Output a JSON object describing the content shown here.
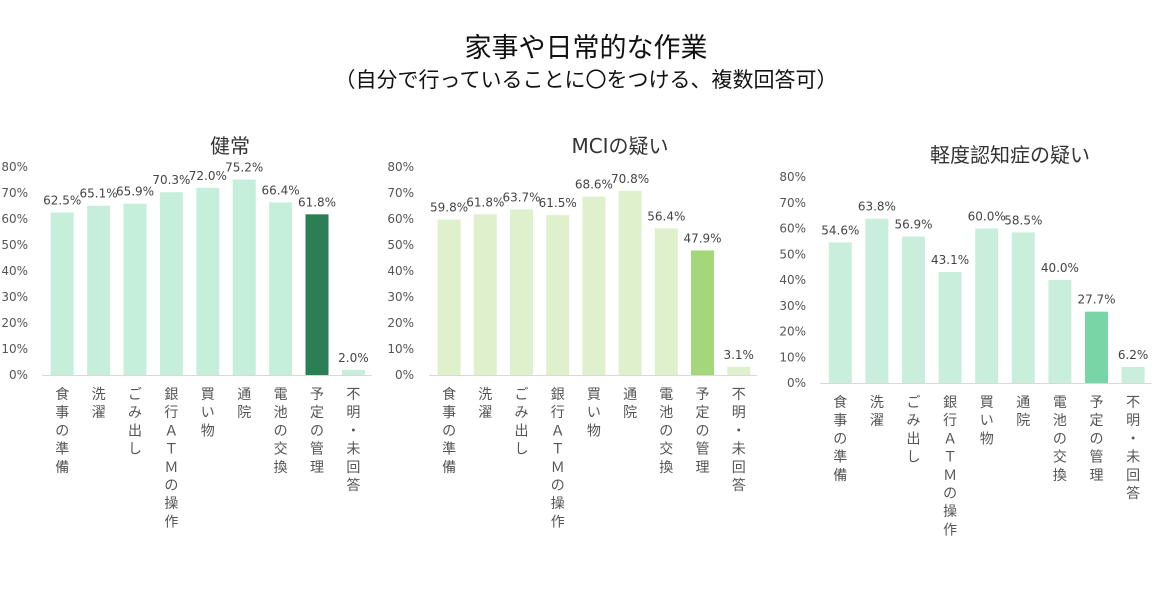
{
  "page": {
    "title": "家事や日常的な作業",
    "subtitle": "（自分で行っていることに〇をつける、複数回答可）"
  },
  "chart_data": [
    {
      "type": "bar",
      "title": "健常",
      "categories": [
        "食事の準備",
        "洗濯",
        "ごみ出し",
        "銀行ＡＴＭの操作",
        "買い物",
        "通院",
        "電池の交換",
        "予定の管理",
        "不明・未回答"
      ],
      "values": [
        62.5,
        65.1,
        65.9,
        70.3,
        72.0,
        75.2,
        66.4,
        61.8,
        2.0
      ],
      "value_labels": [
        "62.5%",
        "65.1%",
        "65.9%",
        "70.3%",
        "72.0%",
        "75.2%",
        "66.4%",
        "61.8%",
        "2.0%"
      ],
      "yticks": [
        "0%",
        "10%",
        "20%",
        "30%",
        "40%",
        "50%",
        "60%",
        "70%",
        "80%"
      ],
      "ylim": [
        0,
        80
      ],
      "colors": {
        "bar": "#c6efdb",
        "highlight": "#2a7f55"
      },
      "highlight_index": 7
    },
    {
      "type": "bar",
      "title": "MCIの疑い",
      "categories": [
        "食事の準備",
        "洗濯",
        "ごみ出し",
        "銀行ＡＴＭの操作",
        "買い物",
        "通院",
        "電池の交換",
        "予定の管理",
        "不明・未回答"
      ],
      "values": [
        59.8,
        61.8,
        63.7,
        61.5,
        68.6,
        70.8,
        56.4,
        47.9,
        3.1
      ],
      "value_labels": [
        "59.8%",
        "61.8%",
        "63.7%",
        "61.5%",
        "68.6%",
        "70.8%",
        "56.4%",
        "47.9%",
        "3.1%"
      ],
      "yticks": [
        "0%",
        "10%",
        "20%",
        "30%",
        "40%",
        "50%",
        "60%",
        "70%",
        "80%"
      ],
      "ylim": [
        0,
        80
      ],
      "colors": {
        "bar": "#dff0cd",
        "highlight": "#a3d77a"
      },
      "highlight_index": 7
    },
    {
      "type": "bar",
      "title": "軽度認知症の疑い",
      "categories": [
        "食事の準備",
        "洗濯",
        "ごみ出し",
        "銀行ＡＴＭの操作",
        "買い物",
        "通院",
        "電池の交換",
        "予定の管理",
        "不明・未回答"
      ],
      "values": [
        54.6,
        63.8,
        56.9,
        43.1,
        60.0,
        58.5,
        40.0,
        27.7,
        6.2
      ],
      "value_labels": [
        "54.6%",
        "63.8%",
        "56.9%",
        "43.1%",
        "60.0%",
        "58.5%",
        "40.0%",
        "27.7%",
        "6.2%"
      ],
      "yticks": [
        "0%",
        "10%",
        "20%",
        "30%",
        "40%",
        "50%",
        "60%",
        "70%",
        "80%"
      ],
      "ylim": [
        0,
        80
      ],
      "colors": {
        "bar": "#c9eedc",
        "highlight": "#79d5a5"
      },
      "highlight_index": 7
    }
  ]
}
